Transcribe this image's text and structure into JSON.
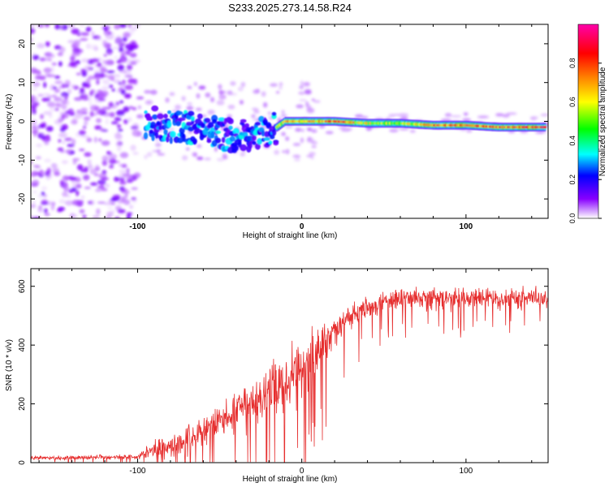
{
  "figure": {
    "title": "S233.2025.273.14.58.R24"
  },
  "chart_data": [
    {
      "type": "heatmap",
      "title": "S233.2025.273.14.58.R24",
      "xlabel": "Height of straight line (km)",
      "ylabel": "Frequency (Hz)",
      "xlim": [
        -165,
        150
      ],
      "ylim": [
        -25,
        25
      ],
      "x_ticks": [
        -100,
        0,
        100
      ],
      "y_ticks": [
        -20,
        -10,
        0,
        10,
        20
      ],
      "colorbar": {
        "label": "Normalized spectral amplitude",
        "range": [
          0,
          1
        ],
        "ticks": [
          0.0,
          0.2,
          0.4,
          0.6,
          0.8
        ],
        "colors": [
          "#ffffff",
          "#8800ff",
          "#0000ff",
          "#00ffff",
          "#00ff00",
          "#ffff00",
          "#ff8800",
          "#ff0000",
          "#ff00aa"
        ]
      },
      "signal_ridge": {
        "x": [
          -95,
          -80,
          -60,
          -40,
          -30,
          -20,
          -10,
          0,
          20,
          40,
          60,
          80,
          100,
          120,
          148
        ],
        "frequency": [
          0,
          -1,
          -2,
          -4,
          -3,
          -3,
          0,
          0,
          0,
          -0.5,
          -0.5,
          -1,
          -1,
          -1.5,
          -1.5
        ],
        "peak_amplitude": [
          0.35,
          0.3,
          0.3,
          0.3,
          0.3,
          0.5,
          0.8,
          0.7,
          0.9,
          0.7,
          0.6,
          0.85,
          0.9,
          0.85,
          0.95
        ]
      },
      "noise_region_x": [
        -165,
        -100
      ]
    },
    {
      "type": "line",
      "xlabel": "Height of straight line (km)",
      "ylabel": "SNR (10 * v/v)",
      "xlim": [
        -165,
        150
      ],
      "ylim": [
        0,
        660
      ],
      "x_ticks": [
        -100,
        0,
        100
      ],
      "y_ticks": [
        0,
        200,
        400,
        600
      ],
      "color": "#e62e2e",
      "envelope": {
        "x": [
          -165,
          -100,
          -90,
          -80,
          -70,
          -60,
          -50,
          -40,
          -30,
          -20,
          -10,
          0,
          10,
          20,
          30,
          40,
          50,
          60,
          70,
          80,
          90,
          100,
          110,
          120,
          130,
          140,
          150
        ],
        "mean": [
          15,
          20,
          45,
          60,
          75,
          110,
          140,
          170,
          200,
          250,
          280,
          330,
          380,
          450,
          500,
          530,
          545,
          560,
          560,
          560,
          555,
          560,
          560,
          555,
          560,
          560,
          560
        ],
        "spread": [
          10,
          12,
          45,
          60,
          70,
          85,
          95,
          110,
          120,
          130,
          150,
          150,
          120,
          80,
          60,
          55,
          50,
          50,
          50,
          50,
          50,
          50,
          50,
          50,
          50,
          50,
          50
        ]
      }
    }
  ]
}
